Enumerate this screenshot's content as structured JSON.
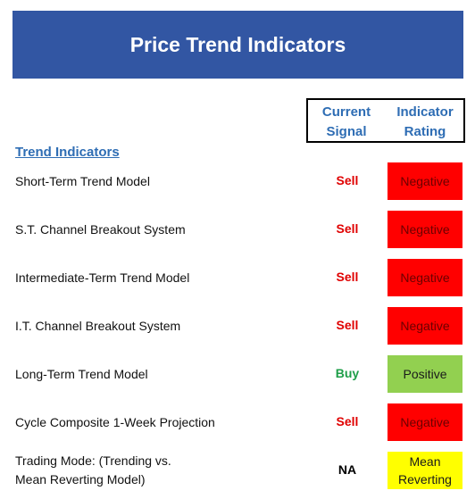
{
  "title": "Price Trend Indicators",
  "header": {
    "signal": [
      "Current",
      "Signal"
    ],
    "rating": [
      "Indicator",
      "Rating"
    ]
  },
  "section": "Trend Indicators",
  "rows": [
    {
      "label": [
        "Short-Term Trend Model"
      ],
      "signal": "Sell",
      "rating": "Negative"
    },
    {
      "label": [
        "S.T. Channel Breakout System"
      ],
      "signal": "Sell",
      "rating": "Negative"
    },
    {
      "label": [
        "Intermediate-Term Trend Model"
      ],
      "signal": "Sell",
      "rating": "Negative"
    },
    {
      "label": [
        "I.T. Channel Breakout System"
      ],
      "signal": "Sell",
      "rating": "Negative"
    },
    {
      "label": [
        "Long-Term Trend Model"
      ],
      "signal": "Buy",
      "rating": "Positive"
    },
    {
      "label": [
        "Cycle Composite 1-Week Projection"
      ],
      "signal": "Sell",
      "rating": "Negative"
    },
    {
      "label": [
        "Trading Mode: (Trending vs.",
        "Mean Reverting Model)"
      ],
      "signal": "NA",
      "rating": "Mean Reverting"
    }
  ]
}
